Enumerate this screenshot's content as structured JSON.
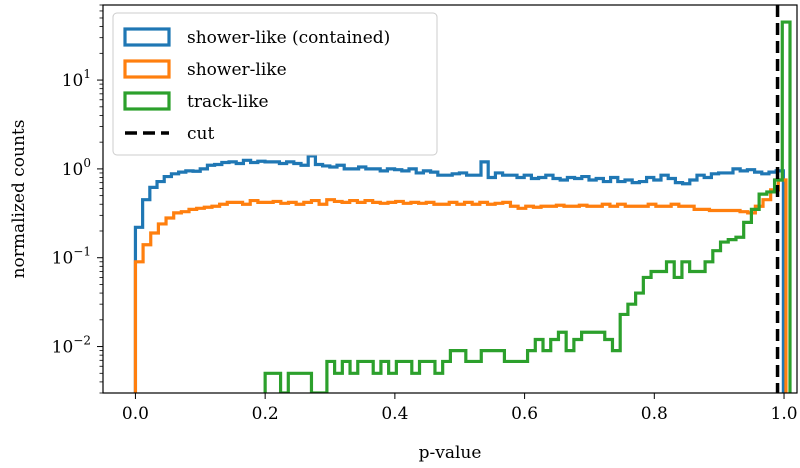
{
  "chart_data": {
    "type": "histogram",
    "xlabel": "p-value",
    "ylabel": "normalized counts",
    "xlim": [
      -0.05,
      1.02
    ],
    "ylim": [
      0.003,
      70
    ],
    "yscale": "log",
    "grid": false,
    "legend_position": "top-left",
    "x_ticks": [
      {
        "value": 0.0,
        "label": "0.0"
      },
      {
        "value": 0.2,
        "label": "0.2"
      },
      {
        "value": 0.4,
        "label": "0.4"
      },
      {
        "value": 0.6,
        "label": "0.6"
      },
      {
        "value": 0.8,
        "label": "0.8"
      },
      {
        "value": 1.0,
        "label": "1.0"
      }
    ],
    "y_ticks": [
      {
        "value": 0.01,
        "base": "10",
        "exp": "−2"
      },
      {
        "value": 0.1,
        "base": "10",
        "exp": "−1"
      },
      {
        "value": 1,
        "base": "10",
        "exp": "0"
      },
      {
        "value": 10,
        "base": "10",
        "exp": "1"
      }
    ],
    "bin_width": 0.02,
    "series": [
      {
        "name": "shower-like (contained)",
        "color": "#1f77b4",
        "bin_start": 0.0,
        "values": [
          0.22,
          0.45,
          0.62,
          0.72,
          0.82,
          0.88,
          0.92,
          0.95,
          0.94,
          1.0,
          1.1,
          1.12,
          1.18,
          1.2,
          1.15,
          1.25,
          1.18,
          1.22,
          1.2,
          1.2,
          1.15,
          1.2,
          1.15,
          1.1,
          1.4,
          1.12,
          1.08,
          1.05,
          1.1,
          1.0,
          1.0,
          1.05,
          1.0,
          1.0,
          0.95,
          1.0,
          0.98,
          0.95,
          1.0,
          0.9,
          0.95,
          0.92,
          0.85,
          0.85,
          0.88,
          0.9,
          0.85,
          0.85,
          1.2,
          0.8,
          0.9,
          0.85,
          0.85,
          0.8,
          0.85,
          0.78,
          0.8,
          0.85,
          0.78,
          0.75,
          0.8,
          0.78,
          0.82,
          0.75,
          0.78,
          0.72,
          0.8,
          0.72,
          0.75,
          0.7,
          0.72,
          0.8,
          0.75,
          0.85,
          0.78,
          0.7,
          0.68,
          0.75,
          0.85,
          0.8,
          0.88,
          0.9,
          0.9,
          1.0,
          0.95,
          0.98,
          0.92,
          0.88,
          0.92,
          0.95
        ],
        "bin_width": 0.0111
      },
      {
        "name": "shower-like",
        "color": "#ff7f0e",
        "bin_start": 0.0,
        "values": [
          0.09,
          0.14,
          0.19,
          0.24,
          0.28,
          0.32,
          0.33,
          0.35,
          0.36,
          0.37,
          0.38,
          0.4,
          0.42,
          0.42,
          0.4,
          0.44,
          0.42,
          0.42,
          0.43,
          0.41,
          0.42,
          0.4,
          0.42,
          0.44,
          0.4,
          0.45,
          0.43,
          0.42,
          0.44,
          0.42,
          0.44,
          0.42,
          0.41,
          0.42,
          0.43,
          0.41,
          0.42,
          0.41,
          0.42,
          0.4,
          0.4,
          0.42,
          0.4,
          0.42,
          0.4,
          0.42,
          0.4,
          0.41,
          0.42,
          0.38,
          0.36,
          0.38,
          0.37,
          0.38,
          0.38,
          0.39,
          0.38,
          0.38,
          0.39,
          0.38,
          0.38,
          0.4,
          0.38,
          0.4,
          0.38,
          0.38,
          0.38,
          0.4,
          0.38,
          0.38,
          0.4,
          0.38,
          0.38,
          0.35,
          0.35,
          0.34,
          0.34,
          0.34,
          0.34,
          0.33,
          0.32,
          0.38,
          0.45,
          0.58,
          0.75
        ],
        "bin_width": 0.0118
      },
      {
        "name": "track-like",
        "color": "#2ca02c",
        "bin_start": 0.2,
        "values": [
          0.005,
          0.005,
          0.003,
          0.005,
          0.005,
          0.005,
          0.003,
          0.003,
          0.0068,
          0.005,
          0.0068,
          0.005,
          0.0068,
          0.0068,
          0.005,
          0.0068,
          0.005,
          0.0068,
          0.0068,
          0.005,
          0.0068,
          0.0068,
          0.005,
          0.0068,
          0.009,
          0.009,
          0.0068,
          0.0068,
          0.009,
          0.009,
          0.009,
          0.0068,
          0.0068,
          0.0068,
          0.009,
          0.012,
          0.009,
          0.012,
          0.0145,
          0.009,
          0.012,
          0.0145,
          0.0145,
          0.0145,
          0.012,
          0.009,
          0.023,
          0.03,
          0.04,
          0.06,
          0.07,
          0.07,
          0.09,
          0.06,
          0.09,
          0.07,
          0.07,
          0.09,
          0.12,
          0.15,
          0.16,
          0.17,
          0.25,
          0.35,
          0.52,
          0.55,
          0.75,
          45.0
        ],
        "bin_width": 0.0119
      }
    ],
    "cut": {
      "name": "cut",
      "value": 0.99,
      "color": "#000000",
      "style": "dashed"
    }
  }
}
